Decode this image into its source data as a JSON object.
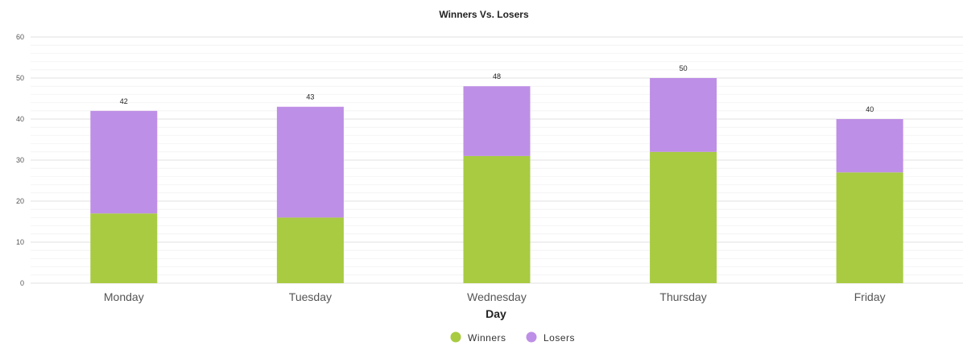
{
  "chart_data": {
    "type": "bar",
    "stacked": true,
    "title": "Winners Vs. Losers",
    "xlabel": "Day",
    "ylabel": "",
    "ylim": [
      0,
      60
    ],
    "yticks": [
      0,
      10,
      20,
      30,
      40,
      50,
      60
    ],
    "grid": true,
    "legend_position": "bottom",
    "categories": [
      "Monday",
      "Tuesday",
      "Wednesday",
      "Thursday",
      "Friday"
    ],
    "series": [
      {
        "name": "Winners",
        "color": "#a8cb42",
        "values": [
          17,
          16,
          31,
          32,
          27
        ]
      },
      {
        "name": "Losers",
        "color": "#be8fe6",
        "values": [
          25,
          27,
          17,
          18,
          13
        ]
      }
    ],
    "totals": [
      42,
      43,
      48,
      50,
      40
    ]
  }
}
